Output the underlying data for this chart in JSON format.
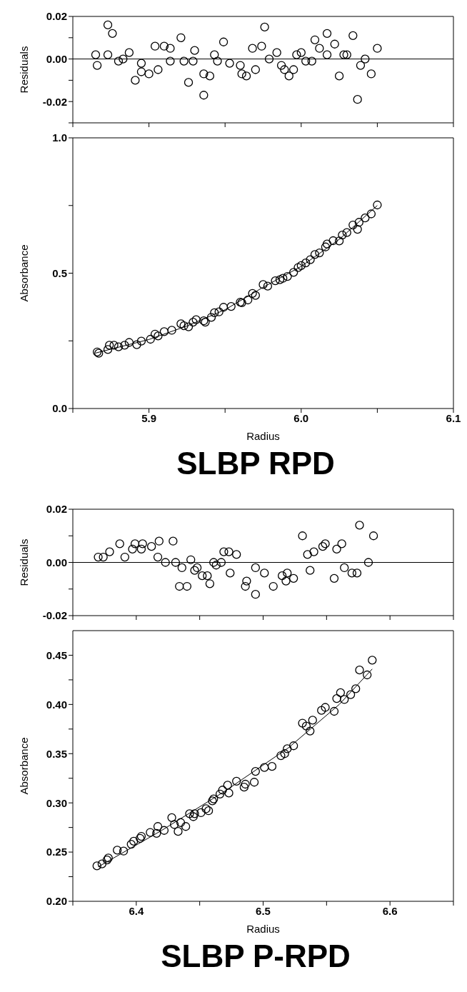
{
  "chart_data": [
    {
      "type": "scatter",
      "ylabel": "Residuals",
      "xlim": [
        5.85,
        6.1
      ],
      "xticks": [
        {
          "value": 5.85,
          "label": null
        },
        {
          "value": 5.9,
          "label": null
        },
        {
          "value": 5.95,
          "label": null
        },
        {
          "value": 6.0,
          "label": null
        },
        {
          "value": 6.05,
          "label": null
        },
        {
          "value": 6.1,
          "label": null
        }
      ],
      "ylim": [
        -0.03,
        0.02
      ],
      "yticks": [
        {
          "value": -0.03,
          "label": null
        },
        -0.02,
        {
          "value": -0.01,
          "label": null
        },
        {
          "value": 0,
          "label": "0.00"
        },
        {
          "value": 0.01,
          "label": null
        },
        0.02
      ],
      "tick_labels": "y",
      "ref_lines": [
        {
          "axis": "y",
          "value": 0,
          "color": "#000000"
        }
      ],
      "series": [
        {
          "color": "#000000",
          "marker": "circle",
          "x": [
            5.865,
            5.866,
            5.873,
            5.876,
            5.873,
            5.88,
            5.883,
            5.887,
            5.891,
            5.895,
            5.895,
            5.9,
            5.904,
            5.906,
            5.91,
            5.914,
            5.914,
            5.921,
            5.923,
            5.926,
            5.929,
            5.93,
            5.936,
            5.936,
            5.94,
            5.943,
            5.945,
            5.949,
            5.953,
            5.96,
            5.961,
            5.964,
            5.968,
            5.97,
            5.974,
            5.976,
            5.979,
            5.984,
            5.987,
            5.989,
            5.992,
            5.995,
            5.997,
            6.0,
            6.003,
            6.007,
            6.009,
            6.012,
            6.017,
            6.017,
            6.022,
            6.025,
            6.028,
            6.03,
            6.034,
            6.037,
            6.039,
            6.042,
            6.046,
            6.05
          ],
          "values": [
            0.002,
            -0.003,
            0.016,
            0.012,
            0.002,
            -0.001,
            0.0,
            0.003,
            -0.01,
            -0.002,
            -0.006,
            -0.007,
            0.006,
            -0.005,
            0.006,
            0.005,
            -0.001,
            0.01,
            -0.001,
            -0.011,
            -0.001,
            0.004,
            -0.007,
            -0.017,
            -0.008,
            0.002,
            -0.001,
            0.008,
            -0.002,
            -0.003,
            -0.007,
            -0.008,
            0.005,
            -0.005,
            0.006,
            0.015,
            0.0,
            0.003,
            -0.003,
            -0.005,
            -0.008,
            -0.005,
            0.002,
            0.003,
            -0.001,
            -0.001,
            0.009,
            0.005,
            0.002,
            0.012,
            0.007,
            -0.008,
            0.002,
            0.002,
            0.011,
            -0.019,
            -0.003,
            0.0,
            -0.007,
            0.005
          ]
        }
      ]
    },
    {
      "type": "scatter",
      "title": "SLBP RPD",
      "xlabel": "Radius",
      "ylabel": "Absorbance",
      "xlim": [
        5.85,
        6.1
      ],
      "xticks": [
        {
          "value": 5.85,
          "label": null
        },
        5.9,
        {
          "value": 5.95,
          "label": null
        },
        {
          "value": 6.0,
          "label": "6.0"
        },
        {
          "value": 6.05,
          "label": null
        },
        6.1
      ],
      "ylim": [
        0,
        1
      ],
      "yticks": [
        {
          "value": 0,
          "label": "0.0"
        },
        {
          "value": 0.25,
          "label": null
        },
        0.5,
        {
          "value": 0.75,
          "label": null
        },
        {
          "value": 1,
          "label": "1.0"
        }
      ],
      "series": [
        {
          "color": "#000000",
          "marker": "circle",
          "x": [
            5.866,
            5.867,
            5.873,
            5.874,
            5.877,
            5.88,
            5.884,
            5.887,
            5.892,
            5.895,
            5.901,
            5.904,
            5.906,
            5.91,
            5.915,
            5.921,
            5.923,
            5.926,
            5.929,
            5.931,
            5.936,
            5.937,
            5.941,
            5.943,
            5.946,
            5.949,
            5.954,
            5.96,
            5.961,
            5.965,
            5.968,
            5.97,
            5.975,
            5.978,
            5.983,
            5.986,
            5.988,
            5.991,
            5.995,
            5.998,
            6.0,
            6.003,
            6.006,
            6.009,
            6.012,
            6.016,
            6.017,
            6.021,
            6.025,
            6.027,
            6.03,
            6.034,
            6.037,
            6.038,
            6.042,
            6.046,
            6.05
          ],
          "values": [
            0.209,
            0.204,
            0.218,
            0.234,
            0.234,
            0.228,
            0.234,
            0.244,
            0.236,
            0.249,
            0.256,
            0.275,
            0.268,
            0.284,
            0.289,
            0.313,
            0.306,
            0.302,
            0.319,
            0.328,
            0.324,
            0.319,
            0.337,
            0.354,
            0.357,
            0.374,
            0.377,
            0.393,
            0.391,
            0.401,
            0.425,
            0.418,
            0.458,
            0.452,
            0.472,
            0.476,
            0.481,
            0.488,
            0.503,
            0.521,
            0.528,
            0.538,
            0.55,
            0.569,
            0.575,
            0.597,
            0.608,
            0.62,
            0.619,
            0.641,
            0.65,
            0.678,
            0.662,
            0.688,
            0.704,
            0.719,
            0.752
          ]
        },
        {
          "type": "line",
          "color": "#000000",
          "x": [
            5.865,
            5.9,
            5.925,
            5.95,
            5.975,
            6.0,
            6.025,
            6.05
          ],
          "values": [
            0.205,
            0.255,
            0.305,
            0.365,
            0.448,
            0.525,
            0.625,
            0.75
          ]
        }
      ]
    },
    {
      "type": "scatter",
      "ylabel": "Residuals",
      "xlim": [
        6.35,
        6.65
      ],
      "xticks": [
        {
          "value": 6.35,
          "label": null
        },
        {
          "value": 6.4,
          "label": null
        },
        {
          "value": 6.45,
          "label": null
        },
        {
          "value": 6.5,
          "label": null
        },
        {
          "value": 6.55,
          "label": null
        },
        {
          "value": 6.6,
          "label": null
        },
        {
          "value": 6.65,
          "label": null
        }
      ],
      "ylim": [
        -0.02,
        0.02
      ],
      "yticks": [
        -0.02,
        {
          "value": -0.01,
          "label": null
        },
        {
          "value": 0,
          "label": "0.00"
        },
        {
          "value": 0.01,
          "label": null
        },
        0.02
      ],
      "tick_labels": "y",
      "ref_lines": [
        {
          "axis": "y",
          "value": 0,
          "color": "#000000"
        }
      ],
      "series": [
        {
          "color": "#000000",
          "marker": "circle",
          "x": [
            6.37,
            6.374,
            6.379,
            6.387,
            6.391,
            6.397,
            6.399,
            6.404,
            6.405,
            6.412,
            6.418,
            6.417,
            6.423,
            6.429,
            6.431,
            6.436,
            6.434,
            6.44,
            6.443,
            6.446,
            6.448,
            6.452,
            6.456,
            6.458,
            6.461,
            6.463,
            6.467,
            6.469,
            6.473,
            6.474,
            6.479,
            6.486,
            6.487,
            6.494,
            6.494,
            6.501,
            6.508,
            6.515,
            6.518,
            6.519,
            6.524,
            6.531,
            6.535,
            6.537,
            6.54,
            6.547,
            6.549,
            6.556,
            6.558,
            6.562,
            6.564,
            6.57,
            6.574,
            6.576,
            6.583,
            6.587
          ],
          "values": [
            0.002,
            0.002,
            0.004,
            0.007,
            0.002,
            0.005,
            0.007,
            0.005,
            0.007,
            0.006,
            0.008,
            0.002,
            0.0,
            0.008,
            0.0,
            -0.002,
            -0.009,
            -0.009,
            0.001,
            -0.003,
            -0.002,
            -0.005,
            -0.005,
            -0.008,
            0.0,
            -0.001,
            0.0,
            0.004,
            0.004,
            -0.004,
            0.003,
            -0.009,
            -0.007,
            -0.012,
            -0.002,
            -0.004,
            -0.009,
            -0.005,
            -0.007,
            -0.004,
            -0.006,
            0.01,
            0.003,
            -0.003,
            0.004,
            0.006,
            0.007,
            -0.006,
            0.005,
            0.007,
            -0.002,
            -0.004,
            -0.004,
            0.014,
            0.0,
            0.01
          ]
        }
      ]
    },
    {
      "type": "scatter",
      "title": "SLBP P-RPD",
      "xlabel": "Radius",
      "ylabel": "Absorbance",
      "xlim": [
        6.35,
        6.65
      ],
      "xticks": [
        {
          "value": 6.35,
          "label": null
        },
        6.4,
        {
          "value": 6.45,
          "label": null
        },
        6.5,
        {
          "value": 6.55,
          "label": null
        },
        6.6,
        {
          "value": 6.65,
          "label": null
        }
      ],
      "ylim": [
        0.2,
        0.475
      ],
      "yticks": [
        {
          "value": 0.2,
          "label": "0.20"
        },
        {
          "value": 0.225,
          "label": null
        },
        0.25,
        {
          "value": 0.275,
          "label": null
        },
        {
          "value": 0.3,
          "label": "0.30"
        },
        {
          "value": 0.325,
          "label": null
        },
        0.35,
        {
          "value": 0.375,
          "label": null
        },
        {
          "value": 0.4,
          "label": "0.40"
        },
        {
          "value": 0.425,
          "label": null
        },
        0.45
      ],
      "series": [
        {
          "color": "#000000",
          "marker": "circle",
          "x": [
            6.369,
            6.373,
            6.377,
            6.378,
            6.385,
            6.39,
            6.396,
            6.398,
            6.403,
            6.404,
            6.411,
            6.416,
            6.417,
            6.422,
            6.428,
            6.43,
            6.433,
            6.435,
            6.439,
            6.442,
            6.445,
            6.446,
            6.451,
            6.455,
            6.457,
            6.46,
            6.461,
            6.466,
            6.468,
            6.472,
            6.473,
            6.479,
            6.485,
            6.486,
            6.493,
            6.494,
            6.501,
            6.507,
            6.514,
            6.517,
            6.519,
            6.524,
            6.531,
            6.534,
            6.537,
            6.539,
            6.546,
            6.549,
            6.556,
            6.558,
            6.561,
            6.564,
            6.569,
            6.573,
            6.576,
            6.582,
            6.586
          ],
          "values": [
            0.236,
            0.238,
            0.242,
            0.244,
            0.252,
            0.251,
            0.258,
            0.261,
            0.264,
            0.266,
            0.27,
            0.269,
            0.276,
            0.272,
            0.285,
            0.278,
            0.271,
            0.28,
            0.276,
            0.289,
            0.286,
            0.289,
            0.29,
            0.294,
            0.292,
            0.302,
            0.304,
            0.309,
            0.313,
            0.318,
            0.31,
            0.322,
            0.316,
            0.319,
            0.321,
            0.332,
            0.336,
            0.337,
            0.348,
            0.35,
            0.355,
            0.358,
            0.381,
            0.378,
            0.373,
            0.384,
            0.394,
            0.397,
            0.393,
            0.406,
            0.412,
            0.405,
            0.41,
            0.416,
            0.435,
            0.43,
            0.445
          ]
        },
        {
          "type": "line",
          "color": "#000000",
          "x": [
            6.37,
            6.42,
            6.47,
            6.52,
            6.56,
            6.586
          ],
          "values": [
            0.235,
            0.272,
            0.312,
            0.356,
            0.4,
            0.436
          ]
        }
      ]
    }
  ]
}
